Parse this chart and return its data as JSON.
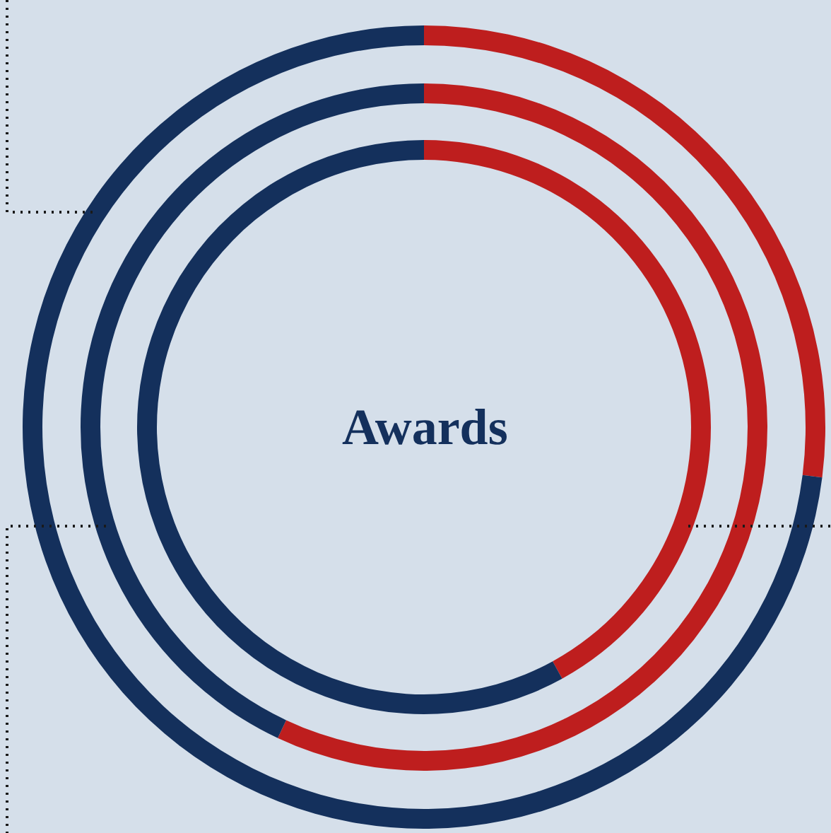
{
  "chart_data": {
    "type": "donut",
    "title": "Awards",
    "categories": [
      null,
      null
    ],
    "series": [
      {
        "values": [
          27,
          73
        ],
        "colors": [
          "#be1e1e",
          "#14305c"
        ]
      },
      {
        "values": [
          57,
          43
        ],
        "colors": [
          "#be1e1e",
          "#14305c"
        ]
      },
      {
        "values": [
          42,
          58
        ],
        "colors": [
          "#be1e1e",
          "#14305c"
        ]
      }
    ]
  }
}
